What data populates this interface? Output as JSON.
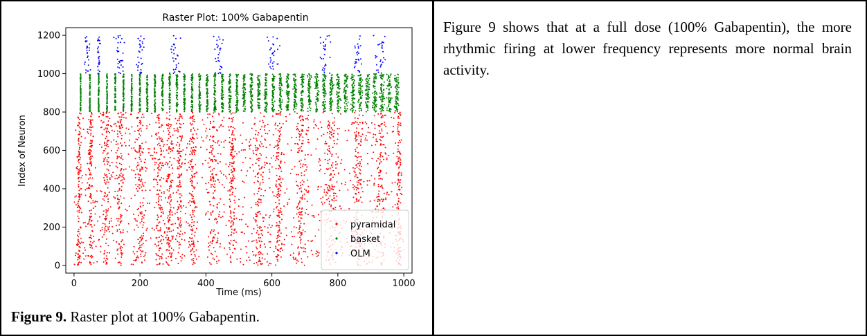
{
  "chart_data": {
    "type": "scatter",
    "title": "Raster Plot: 100% Gabapentin",
    "xlabel": "Time (ms)",
    "ylabel": "Index of Neuron",
    "xlim": [
      -25,
      1025
    ],
    "ylim": [
      -40,
      1240
    ],
    "x_ticks": [
      0,
      200,
      400,
      600,
      800,
      1000
    ],
    "y_ticks": [
      0,
      200,
      400,
      600,
      800,
      1000,
      1200
    ],
    "grid": false,
    "legend_position": "lower-right",
    "series": [
      {
        "name": "pyramidal",
        "color": "#ff0000",
        "neuron_range": [
          0,
          799
        ],
        "bursts": [
          [
            15,
            12
          ],
          [
            50,
            10
          ],
          [
            100,
            25
          ],
          [
            140,
            20
          ],
          [
            200,
            25
          ],
          [
            260,
            20
          ],
          [
            290,
            15
          ],
          [
            320,
            15
          ],
          [
            360,
            15
          ],
          [
            420,
            30
          ],
          [
            480,
            15
          ],
          [
            560,
            25
          ],
          [
            620,
            15
          ],
          [
            690,
            25
          ],
          [
            780,
            25
          ],
          [
            860,
            20
          ],
          [
            930,
            25
          ],
          [
            985,
            10
          ]
        ]
      },
      {
        "name": "basket",
        "color": "#008000",
        "neuron_range": [
          800,
          999
        ],
        "columns": [
          20,
          48,
          75,
          100,
          125,
          150,
          175,
          200,
          222,
          245,
          268,
          290,
          312,
          335,
          358,
          381,
          404,
          427,
          450,
          472,
          494,
          516,
          538,
          560,
          582,
          604,
          626,
          648,
          670,
          692,
          714,
          736,
          758,
          780,
          802,
          824,
          846,
          868,
          890,
          912,
          934,
          956,
          978
        ]
      },
      {
        "name": "OLM",
        "color": "#0000ff",
        "neuron_range": [
          1000,
          1199
        ],
        "bursts": [
          [
            40,
            12
          ],
          [
            75,
            10
          ],
          [
            135,
            25
          ],
          [
            200,
            20
          ],
          [
            305,
            22
          ],
          [
            440,
            22
          ],
          [
            605,
            25
          ],
          [
            760,
            25
          ],
          [
            860,
            20
          ],
          [
            930,
            25
          ]
        ]
      }
    ]
  },
  "caption": {
    "label": "Figure 9.",
    "text": " Raster plot at 100% Gabapentin."
  },
  "body_text": "Figure 9 shows that at a full dose (100% Gabapentin), the more rhythmic firing at lower frequency represents more normal brain activity."
}
